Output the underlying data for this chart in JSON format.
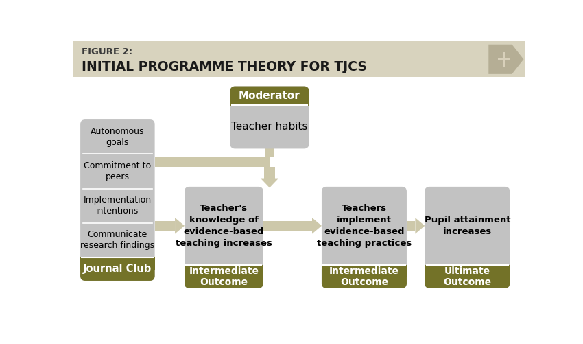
{
  "title_line1": "FIGURE 2:",
  "title_line2": "INITIAL PROGRAMME THEORY FOR TJCS",
  "header_bg": "#d8d3be",
  "page_bg": "#ffffff",
  "olive": "#737228",
  "gray_box": "#c2c2c2",
  "arrow_color": "#cdc8aa",
  "divider_color": "#ffffff",
  "box1_texts": [
    "Autonomous\ngoals",
    "Commitment to\npeers",
    "Implementation\nintentions",
    "Communicate\nresearch findings"
  ],
  "box1_footer": "Journal Club",
  "box2_body": "Teacher's\nknowledge of\nevidence-based\nteaching increases",
  "box2_footer": "Intermediate\nOutcome",
  "box3_body": "Teachers\nimplement\nevidence-based\nteaching practices",
  "box3_footer": "Intermediate\nOutcome",
  "box4_body": "Pupil attainment\nincreases",
  "box4_footer": "Ultimate\nOutcome",
  "mod_header": "Moderator",
  "mod_body": "Teacher habits",
  "title1_color": "#3a3a3a",
  "title2_color": "#1a1a1a"
}
